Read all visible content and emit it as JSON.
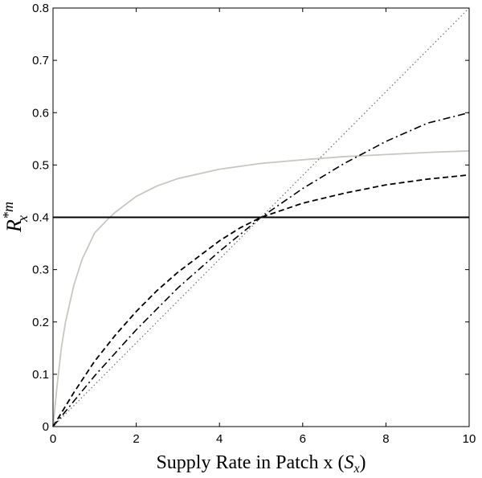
{
  "chart_data": {
    "type": "line",
    "xlabel": "Supply Rate in Patch x (",
    "xlabel_symbol": "S",
    "xlabel_subscript": "x",
    "xlabel_close": ")",
    "ylabel_symbol": "R",
    "ylabel_superscript": "*m",
    "ylabel_subscript": "x",
    "xlim": [
      0,
      10
    ],
    "ylim": [
      0,
      0.8
    ],
    "x_ticks": [
      0,
      2,
      4,
      6,
      8,
      10
    ],
    "y_ticks": [
      0,
      0.1,
      0.2,
      0.3,
      0.4,
      0.5,
      0.6,
      0.7,
      0.8
    ],
    "x_tick_labels": [
      "0",
      "2",
      "4",
      "6",
      "8",
      "10"
    ],
    "y_tick_labels": [
      "0",
      "0.1",
      "0.2",
      "0.3",
      "0.4",
      "0.5",
      "0.6",
      "0.7",
      "0.8"
    ],
    "grid": false,
    "series": [
      {
        "style": "solid-gray",
        "color": "#c8c8c0",
        "x": [
          0,
          0.1,
          0.2,
          0.3,
          0.5,
          0.7,
          1.0,
          1.3,
          1.5,
          2,
          2.5,
          3,
          4,
          5,
          6,
          7,
          8,
          9,
          10
        ],
        "y": [
          0,
          0.08,
          0.15,
          0.2,
          0.27,
          0.32,
          0.37,
          0.395,
          0.41,
          0.44,
          0.46,
          0.474,
          0.492,
          0.503,
          0.51,
          0.516,
          0.52,
          0.524,
          0.527
        ]
      },
      {
        "style": "solid-black",
        "color": "#000000",
        "x": [
          0,
          10
        ],
        "y": [
          0.4,
          0.4
        ]
      },
      {
        "style": "dashed",
        "color": "#000000",
        "x": [
          0,
          0.5,
          1,
          1.5,
          2,
          2.5,
          3,
          3.5,
          4,
          4.5,
          5,
          6,
          7,
          8,
          9,
          10
        ],
        "y": [
          0,
          0.065,
          0.125,
          0.175,
          0.22,
          0.26,
          0.295,
          0.325,
          0.355,
          0.38,
          0.4,
          0.427,
          0.446,
          0.462,
          0.473,
          0.481
        ]
      },
      {
        "style": "dash-dot",
        "color": "#000000",
        "x": [
          0,
          1,
          2,
          3,
          4,
          5,
          6,
          7,
          8,
          9,
          10
        ],
        "y": [
          0,
          0.097,
          0.185,
          0.265,
          0.335,
          0.4,
          0.455,
          0.503,
          0.545,
          0.58,
          0.6
        ]
      },
      {
        "style": "dotted",
        "color": "#777777",
        "x": [
          0,
          10
        ],
        "y": [
          0,
          0.8
        ]
      }
    ]
  }
}
